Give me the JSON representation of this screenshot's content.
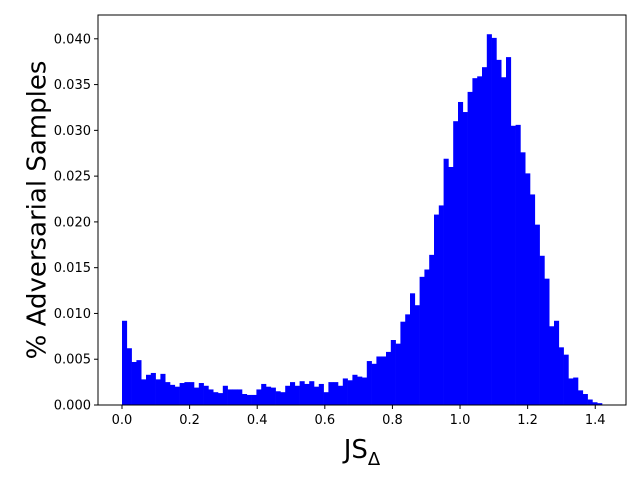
{
  "chart_data": {
    "type": "histogram",
    "xlabel": {
      "text": "JS",
      "subscript": "Δ"
    },
    "ylabel": "% Adversarial Samples",
    "color": "#0000ff",
    "bins": [
      0,
      0.0142,
      0.0284,
      0.0426,
      0.0568,
      0.071,
      0.0852,
      0.0994,
      0.1136,
      0.1278,
      0.142,
      0.1562,
      0.1704,
      0.1846,
      0.1988,
      0.213,
      0.2272,
      0.2414,
      0.2556,
      0.2698,
      0.284,
      0.2982,
      0.3124,
      0.3266,
      0.3408,
      0.355,
      0.3692,
      0.3834,
      0.3976,
      0.4118,
      0.426,
      0.4402,
      0.4544,
      0.4686,
      0.4828,
      0.497,
      0.5112,
      0.5254,
      0.5396,
      0.5538,
      0.568,
      0.5822,
      0.5964,
      0.6106,
      0.6248,
      0.639,
      0.6532,
      0.6674,
      0.6816,
      0.6958,
      0.71,
      0.7242,
      0.7384,
      0.7526,
      0.7668,
      0.781,
      0.7952,
      0.8094,
      0.8236,
      0.8378,
      0.852,
      0.8662,
      0.8804,
      0.8946,
      0.9088,
      0.923,
      0.9372,
      0.9514,
      0.9656,
      0.9798,
      0.994,
      1.0082,
      1.0224,
      1.0366,
      1.0508,
      1.065,
      1.0792,
      1.0934,
      1.1076,
      1.1218,
      1.136,
      1.1502,
      1.1644,
      1.1786,
      1.1928,
      1.207,
      1.2212,
      1.2354,
      1.2496,
      1.2638,
      1.278,
      1.2922,
      1.3064,
      1.3206,
      1.3348,
      1.349,
      1.3632,
      1.3774,
      1.3916,
      1.4058,
      1.42
    ],
    "values": [
      0.0092,
      0.0062,
      0.0047,
      0.0049,
      0.0028,
      0.0033,
      0.0035,
      0.0028,
      0.0034,
      0.0025,
      0.0022,
      0.002,
      0.0024,
      0.0025,
      0.0025,
      0.0019,
      0.0024,
      0.0021,
      0.0017,
      0.0014,
      0.0013,
      0.0021,
      0.0017,
      0.0017,
      0.0017,
      0.0012,
      0.0011,
      0.0011,
      0.0017,
      0.0023,
      0.002,
      0.0019,
      0.0015,
      0.0014,
      0.0021,
      0.0025,
      0.0021,
      0.0026,
      0.0023,
      0.0026,
      0.002,
      0.0023,
      0.0014,
      0.0025,
      0.0025,
      0.0021,
      0.0029,
      0.0027,
      0.0033,
      0.0031,
      0.003,
      0.0048,
      0.0045,
      0.0053,
      0.0053,
      0.0058,
      0.0071,
      0.0067,
      0.0091,
      0.0099,
      0.0122,
      0.0109,
      0.014,
      0.0148,
      0.0164,
      0.0208,
      0.0218,
      0.0269,
      0.026,
      0.031,
      0.0331,
      0.032,
      0.0342,
      0.0357,
      0.0359,
      0.0369,
      0.0405,
      0.0401,
      0.0377,
      0.0358,
      0.038,
      0.0305,
      0.0306,
      0.0276,
      0.0253,
      0.023,
      0.0197,
      0.0163,
      0.0138,
      0.0086,
      0.0092,
      0.0063,
      0.0055,
      0.0029,
      0.003,
      0.0016,
      0.0012,
      0.0006,
      0.0003,
      0.0002
    ],
    "xlim": [
      -0.071,
      1.491
    ],
    "ylim": [
      0,
      0.0426
    ],
    "xticks": [
      {
        "value": 0,
        "label": "0.0"
      },
      0.2,
      0.4,
      0.6,
      0.8,
      {
        "value": 1,
        "label": "1.0"
      },
      1.2,
      1.4
    ],
    "yticks": [
      {
        "value": 0,
        "label": "0.000"
      },
      0.005,
      {
        "value": 0.01,
        "label": "0.010"
      },
      0.015,
      {
        "value": 0.02,
        "label": "0.020"
      },
      0.025,
      {
        "value": 0.03,
        "label": "0.030"
      },
      0.035,
      {
        "value": 0.04,
        "label": "0.040"
      }
    ]
  }
}
